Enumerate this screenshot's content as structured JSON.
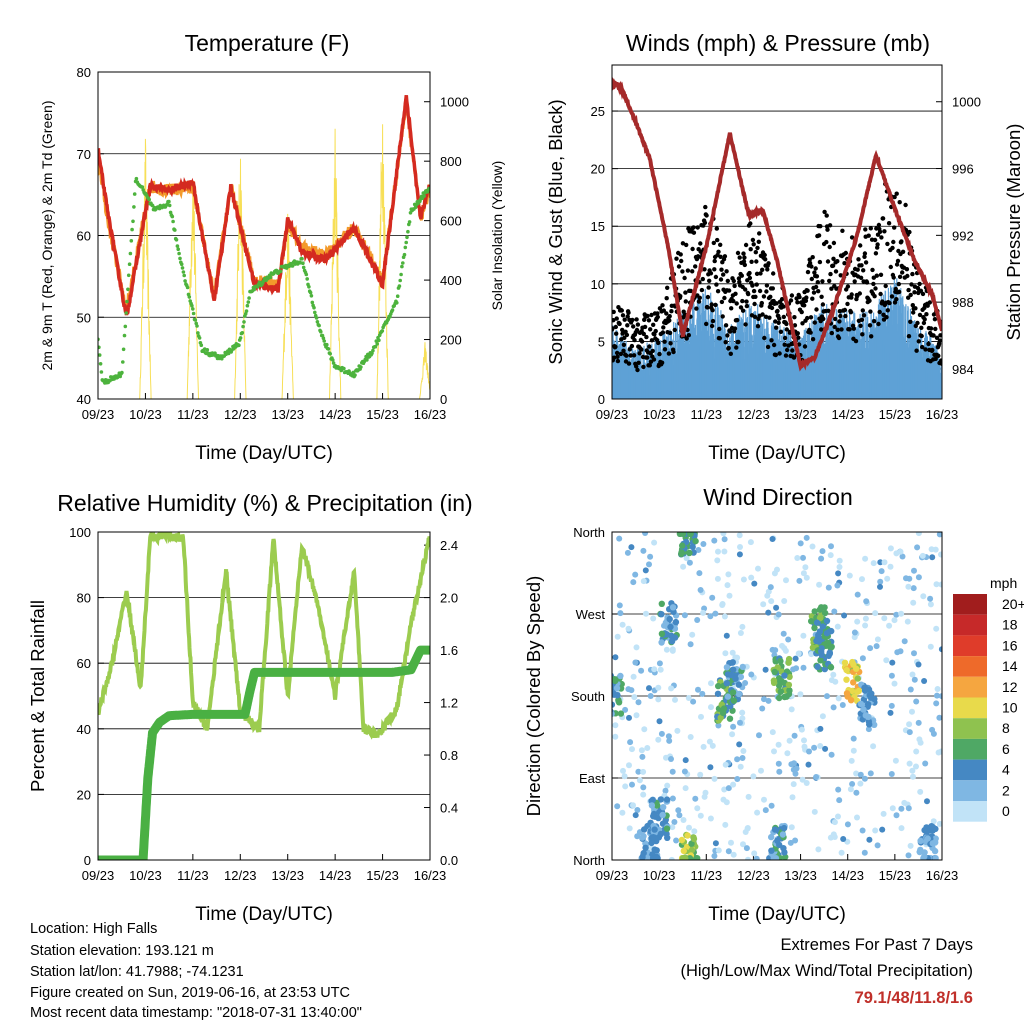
{
  "chart_data": [
    {
      "type": "line",
      "title": "Temperature (F)",
      "xlabel": "Time (Day/UTC)",
      "ylabel": "2m & 9m T (Red, Orange) & 2m Td (Green)",
      "y2label": "Solar Insolation (Yellow)",
      "x_ticks": [
        "09/23",
        "10/23",
        "11/23",
        "12/23",
        "13/23",
        "14/23",
        "15/23",
        "16/23"
      ],
      "ylim": [
        40,
        80
      ],
      "y_ticks": [
        40,
        50,
        60,
        70,
        80
      ],
      "y2lim": [
        0,
        1100
      ],
      "y2_ticks": [
        0,
        200,
        400,
        600,
        800,
        1000
      ],
      "grid": "horizontal",
      "colors": {
        "t2m": "#d42a20",
        "t9m": "#f39a2b",
        "td2m": "#4db33d",
        "solar": "#f7df57"
      },
      "series": [
        {
          "key": "t2m",
          "x": [
            0,
            0.2,
            0.6,
            1.1,
            1.5,
            2.0,
            2.45,
            2.8,
            3.3,
            3.8,
            4.0,
            4.3,
            4.8,
            5.4,
            6.0,
            6.5,
            6.8,
            7.0
          ],
          "values": [
            70.5,
            63,
            50,
            66,
            65.5,
            66.5,
            52,
            66,
            54,
            53.5,
            62,
            58,
            57,
            61,
            54,
            77,
            62,
            66.5
          ]
        },
        {
          "key": "t9m",
          "x": [
            0,
            0.2,
            0.6,
            1.1,
            1.5,
            2.0,
            2.45,
            2.8,
            3.3,
            3.8,
            4.0,
            4.3,
            4.8,
            5.4,
            6.0,
            6.5,
            6.8,
            7.0
          ],
          "values": [
            70,
            62,
            51,
            66,
            65.5,
            66,
            52.5,
            66,
            54.5,
            54,
            61.5,
            58.5,
            57.5,
            61,
            54.5,
            76.5,
            62,
            66
          ]
        },
        {
          "key": "td2m",
          "x": [
            0,
            0.1,
            0.5,
            0.8,
            1.2,
            1.5,
            1.7,
            2.2,
            2.6,
            3.0,
            3.2,
            3.6,
            3.9,
            4.3,
            4.7,
            5.0,
            5.4,
            5.8,
            6.3,
            6.6,
            7.0
          ],
          "values": [
            47,
            42,
            43,
            67,
            63,
            64,
            58,
            46,
            45,
            47,
            53,
            55,
            56,
            57,
            48,
            44,
            43,
            46,
            52,
            63,
            66
          ]
        },
        {
          "key": "solar",
          "x": [
            0,
            0.95,
            1.0,
            1.05,
            1.9,
            2.0,
            2.1,
            2.95,
            3.0,
            3.05,
            3.9,
            4.0,
            4.1,
            4.9,
            5.0,
            5.1,
            5.9,
            6.0,
            6.1,
            6.7,
            6.9,
            7.0
          ],
          "values": [
            0,
            0,
            900,
            0,
            0,
            880,
            0,
            0,
            920,
            0,
            0,
            700,
            0,
            0,
            950,
            0,
            0,
            1080,
            0,
            0,
            200,
            0
          ]
        }
      ]
    },
    {
      "type": "scatter",
      "title": "Winds (mph) & Pressure (mb)",
      "xlabel": "Time (Day/UTC)",
      "ylabel": "Sonic Wind & Gust (Blue, Black)",
      "y2label": "Station Pressure (Maroon)",
      "x_ticks": [
        "09/23",
        "10/23",
        "11/23",
        "12/23",
        "13/23",
        "14/23",
        "15/23",
        "16/23"
      ],
      "ylim": [
        0,
        29
      ],
      "y_ticks": [
        0,
        5,
        10,
        15,
        20,
        25
      ],
      "y2lim": [
        982.2,
        1002.2
      ],
      "y2_ticks": [
        984,
        988,
        992,
        996,
        1000
      ],
      "grid": "horizontal",
      "colors": {
        "wind": "#5fa1d6",
        "gust": "#000000",
        "pressure": "#a52a2a"
      },
      "wind_envelope": {
        "x": [
          0,
          0.5,
          1.0,
          1.5,
          2.0,
          2.5,
          3.0,
          3.5,
          4.0,
          4.5,
          5.0,
          5.5,
          6.0,
          6.5,
          7.0
        ],
        "values": [
          6,
          4,
          5,
          7,
          9,
          6,
          8,
          6,
          5,
          8,
          7,
          7,
          10,
          6,
          4
        ]
      },
      "gust_envelope": {
        "x": [
          0,
          0.5,
          1.0,
          1.5,
          2.0,
          2.5,
          3.0,
          3.5,
          4.0,
          4.5,
          5.0,
          5.5,
          6.0,
          6.5,
          7.0
        ],
        "values": [
          9,
          7,
          8,
          14,
          18,
          11,
          16,
          10,
          9,
          17,
          14,
          15,
          22,
          11,
          7
        ]
      },
      "series": [
        {
          "key": "pressure",
          "x": [
            0,
            0.1,
            0.25,
            0.5,
            0.8,
            1.2,
            1.5,
            2.0,
            2.5,
            2.9,
            3.2,
            3.5,
            4.0,
            4.3,
            4.7,
            5.2,
            5.6,
            6.0,
            6.4,
            6.8,
            7.0
          ],
          "values": [
            1000.9,
            1001.1,
            1000.5,
            998.8,
            996.6,
            991.2,
            986.0,
            991.3,
            998.1,
            993.2,
            993.5,
            990.5,
            984.2,
            984.7,
            987.6,
            992.0,
            996.8,
            993.6,
            990.6,
            988.4,
            986.3
          ]
        }
      ]
    },
    {
      "type": "line",
      "title": "Relative Humidity (%) & Precipitation (in)",
      "xlabel": "Time (Day/UTC)",
      "ylabel": "Percent & Total Rainfall",
      "x_ticks": [
        "09/23",
        "10/23",
        "11/23",
        "12/23",
        "13/23",
        "14/23",
        "15/23",
        "16/23"
      ],
      "ylim": [
        0,
        100
      ],
      "y_ticks": [
        0,
        20,
        40,
        60,
        80,
        100
      ],
      "y2lim": [
        0,
        2.5
      ],
      "y2_ticks": [
        "0.0",
        "0.4",
        "0.8",
        "1.2",
        "1.6",
        "2.0",
        "2.4"
      ],
      "grid": "horizontal",
      "colors": {
        "rh": "#9ccc4f",
        "rain": "#4ab043"
      },
      "series": [
        {
          "key": "rh",
          "x": [
            0,
            0.3,
            0.6,
            0.9,
            1.1,
            1.4,
            1.8,
            2.0,
            2.3,
            2.7,
            3.0,
            3.4,
            3.7,
            4.0,
            4.3,
            4.6,
            5.0,
            5.4,
            5.6,
            5.9,
            6.3,
            6.6,
            7.0
          ],
          "values": [
            45,
            60,
            82,
            52,
            98,
            99,
            98,
            48,
            40,
            88,
            45,
            40,
            98,
            50,
            96,
            80,
            50,
            88,
            40,
            38,
            46,
            72,
            99
          ]
        },
        {
          "key": "rain",
          "x": [
            0,
            0.95,
            1.05,
            1.15,
            1.3,
            1.5,
            2.0,
            3.1,
            3.2,
            3.3,
            4.0,
            4.5,
            5.0,
            5.5,
            6.2,
            6.6,
            6.8,
            7.0
          ],
          "values": [
            0.0,
            0.0,
            0.62,
            0.97,
            1.05,
            1.1,
            1.11,
            1.11,
            1.28,
            1.43,
            1.43,
            1.43,
            1.43,
            1.43,
            1.43,
            1.45,
            1.6,
            1.6
          ]
        }
      ]
    },
    {
      "type": "scatter",
      "title": "Wind Direction",
      "xlabel": "Time (Day/UTC)",
      "ylabel": "Direction (Colored By Speed)",
      "x_ticks": [
        "09/23",
        "10/23",
        "11/23",
        "12/23",
        "13/23",
        "14/23",
        "15/23",
        "16/23"
      ],
      "y_ticks": [
        "North",
        "East",
        "South",
        "West",
        "North"
      ],
      "ylim": [
        0,
        360
      ],
      "grid": "horizontal",
      "legend": {
        "title": "mph",
        "placement": "right",
        "labels": [
          "20+",
          "18",
          "16",
          "14",
          "12",
          "10",
          "8",
          "6",
          "4",
          "2",
          "0"
        ],
        "colors": [
          "#a11d1d",
          "#c62929",
          "#df3c2a",
          "#ee6a2a",
          "#f5a640",
          "#e8da4b",
          "#8fc24f",
          "#4fa865",
          "#4588c3",
          "#7fb7e3",
          "#c1e3f7"
        ]
      },
      "clusters": [
        {
          "x": 0.05,
          "dir": 180,
          "speed": 4
        },
        {
          "x": 0.8,
          "dir": 20,
          "speed": 3
        },
        {
          "x": 1.0,
          "dir": 45,
          "speed": 4
        },
        {
          "x": 1.2,
          "dir": 260,
          "speed": 4
        },
        {
          "x": 1.6,
          "dir": 358,
          "speed": 5
        },
        {
          "x": 1.65,
          "dir": 5,
          "speed": 8
        },
        {
          "x": 2.4,
          "dir": 175,
          "speed": 6
        },
        {
          "x": 2.6,
          "dir": 195,
          "speed": 4
        },
        {
          "x": 3.5,
          "dir": 15,
          "speed": 4
        },
        {
          "x": 3.6,
          "dir": 200,
          "speed": 6
        },
        {
          "x": 4.4,
          "dir": 255,
          "speed": 6
        },
        {
          "x": 4.5,
          "dir": 230,
          "speed": 5
        },
        {
          "x": 5.1,
          "dir": 195,
          "speed": 10
        },
        {
          "x": 5.4,
          "dir": 170,
          "speed": 3
        },
        {
          "x": 6.7,
          "dir": 15,
          "speed": 3
        }
      ]
    }
  ],
  "metadata": {
    "location": "Location: High Falls",
    "elevation": "Station elevation: 193.121 m",
    "latlon": "Station lat/lon: 41.7988; -74.1231",
    "created": "Figure created on Sun, 2019-06-16, at 23:53 UTC",
    "recent": "Most recent data timestamp: \"2018-07-31 13:40:00\""
  },
  "extremes": {
    "title": "Extremes For Past 7 Days",
    "subtitle": "(High/Low/Max Wind/Total Precipitation)",
    "value": "79.1/48/11.8/1.6"
  }
}
